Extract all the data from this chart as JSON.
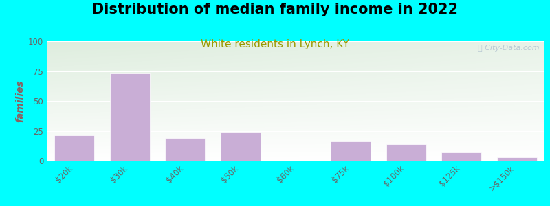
{
  "title": "Distribution of median family income in 2022",
  "subtitle": "White residents in Lynch, KY",
  "categories": [
    "$20k",
    "$30k",
    "$40k",
    "$50k",
    "$60k",
    "$75k",
    "$100k",
    "$125k",
    ">$150k"
  ],
  "values": [
    21,
    73,
    19,
    24,
    0,
    16,
    14,
    7,
    3
  ],
  "bar_color": "#c9aed6",
  "bar_edge_color": "#ffffff",
  "ylabel": "families",
  "ylim": [
    0,
    100
  ],
  "yticks": [
    0,
    25,
    50,
    75,
    100
  ],
  "background_outer": "#00ffff",
  "background_inner_top_left": "#ddeedd",
  "background_inner_top_right": "#eef5f0",
  "background_inner_bottom": "#ffffff",
  "watermark": "ⓘ City-Data.com",
  "title_fontsize": 15,
  "subtitle_fontsize": 11,
  "subtitle_color": "#999900",
  "ylabel_color": "#8B6060",
  "tick_color": "#666666"
}
